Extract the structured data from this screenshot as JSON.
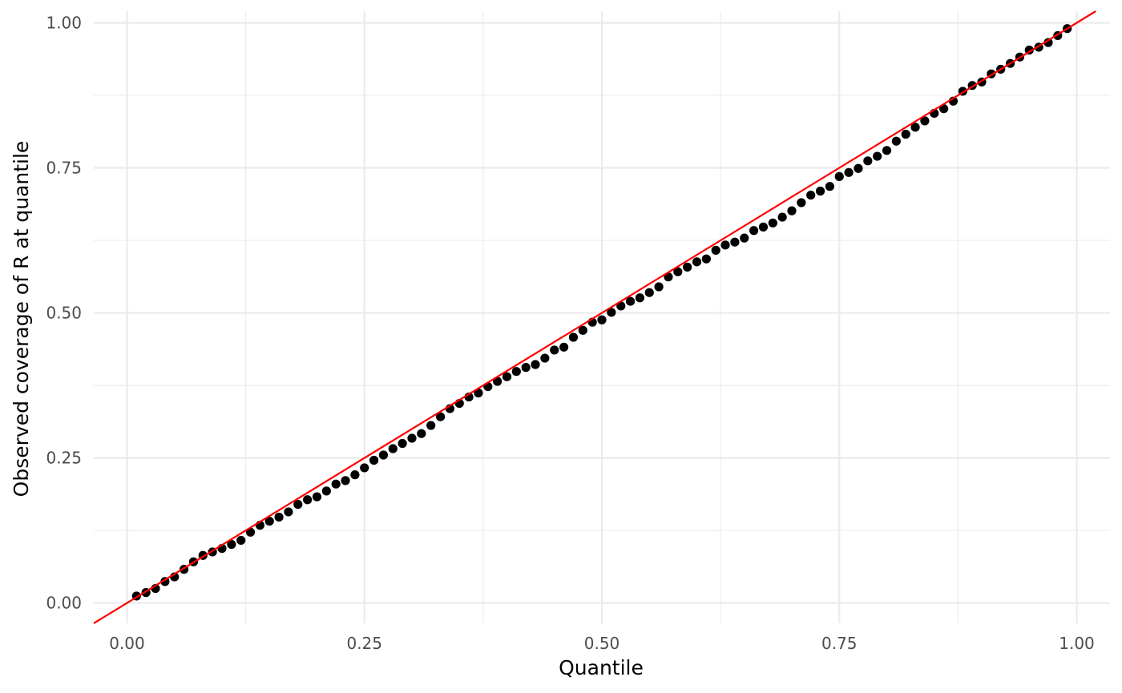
{
  "chart_data": {
    "type": "scatter",
    "xlabel": "Quantile",
    "ylabel": "Observed coverage of R at quantile",
    "xlim": [
      -0.035,
      1.035
    ],
    "ylim": [
      -0.035,
      1.02
    ],
    "x_ticks": [
      0,
      0.25,
      0.5,
      0.75,
      1
    ],
    "x_tick_labels": [
      "0.00",
      "0.25",
      "0.50",
      "0.75",
      "1.00"
    ],
    "y_ticks": [
      0,
      0.25,
      0.5,
      0.75,
      1
    ],
    "y_tick_labels": [
      "0.00",
      "0.25",
      "0.50",
      "0.75",
      "1.00"
    ],
    "grid": true,
    "reference_line": {
      "slope": 1,
      "intercept": 0,
      "color": "#ff0000"
    },
    "point_color": "#000000",
    "points": {
      "x": [
        0.01,
        0.02,
        0.03,
        0.04,
        0.05,
        0.06,
        0.07,
        0.08,
        0.09,
        0.1,
        0.11,
        0.12,
        0.13,
        0.14,
        0.15,
        0.16,
        0.17,
        0.18,
        0.19,
        0.2,
        0.21,
        0.22,
        0.23,
        0.24,
        0.25,
        0.26,
        0.27,
        0.28,
        0.29,
        0.3,
        0.31,
        0.32,
        0.33,
        0.34,
        0.35,
        0.36,
        0.37,
        0.38,
        0.39,
        0.4,
        0.41,
        0.42,
        0.43,
        0.44,
        0.45,
        0.46,
        0.47,
        0.48,
        0.49,
        0.5,
        0.51,
        0.52,
        0.53,
        0.54,
        0.55,
        0.56,
        0.57,
        0.58,
        0.59,
        0.6,
        0.61,
        0.62,
        0.63,
        0.64,
        0.65,
        0.66,
        0.67,
        0.68,
        0.69,
        0.7,
        0.71,
        0.72,
        0.73,
        0.74,
        0.75,
        0.76,
        0.77,
        0.78,
        0.79,
        0.8,
        0.81,
        0.82,
        0.83,
        0.84,
        0.85,
        0.86,
        0.87,
        0.88,
        0.89,
        0.9,
        0.91,
        0.92,
        0.93,
        0.94,
        0.95,
        0.96,
        0.97,
        0.98,
        0.99
      ],
      "y": [
        0.012,
        0.018,
        0.025,
        0.037,
        0.045,
        0.058,
        0.071,
        0.082,
        0.088,
        0.094,
        0.101,
        0.108,
        0.122,
        0.134,
        0.141,
        0.148,
        0.157,
        0.17,
        0.178,
        0.183,
        0.193,
        0.205,
        0.211,
        0.221,
        0.233,
        0.246,
        0.255,
        0.266,
        0.275,
        0.284,
        0.292,
        0.306,
        0.321,
        0.335,
        0.344,
        0.355,
        0.362,
        0.373,
        0.382,
        0.39,
        0.399,
        0.406,
        0.411,
        0.422,
        0.436,
        0.441,
        0.458,
        0.47,
        0.484,
        0.488,
        0.501,
        0.512,
        0.52,
        0.526,
        0.535,
        0.545,
        0.562,
        0.571,
        0.579,
        0.588,
        0.593,
        0.608,
        0.617,
        0.622,
        0.629,
        0.642,
        0.648,
        0.655,
        0.665,
        0.676,
        0.69,
        0.703,
        0.71,
        0.718,
        0.735,
        0.742,
        0.749,
        0.762,
        0.77,
        0.78,
        0.796,
        0.808,
        0.82,
        0.831,
        0.844,
        0.852,
        0.865,
        0.882,
        0.892,
        0.898,
        0.912,
        0.92,
        0.93,
        0.941,
        0.953,
        0.958,
        0.966,
        0.978,
        0.99
      ]
    }
  }
}
